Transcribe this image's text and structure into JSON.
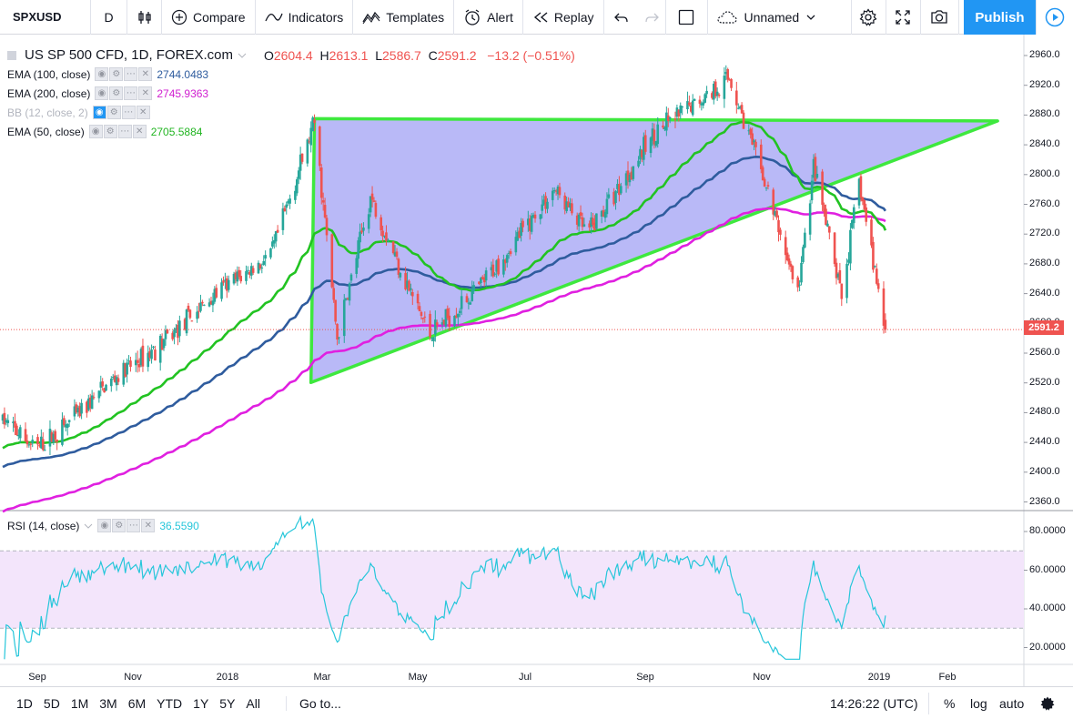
{
  "toolbar": {
    "symbol": "SPXUSD",
    "interval": "D",
    "compare": "Compare",
    "indicators": "Indicators",
    "templates": "Templates",
    "alert": "Alert",
    "replay": "Replay",
    "layout_name": "Unnamed",
    "publish": "Publish",
    "icons": [
      "bars-style-icon",
      "compare-plus-icon",
      "indicators-icon",
      "templates-icon",
      "alert-clock-icon",
      "replay-icon",
      "undo-icon",
      "redo-icon",
      "layout-square-icon",
      "cloud-icon",
      "chevron-down-icon",
      "gear-icon",
      "fullscreen-icon",
      "camera-icon",
      "play-icon"
    ]
  },
  "legend": {
    "title": "US SP 500 CFD, 1D, FOREX.com",
    "open_label": "O",
    "open": "2604.4",
    "high_label": "H",
    "high": "2613.1",
    "low_label": "L",
    "low": "2586.7",
    "close_label": "C",
    "close": "2591.2",
    "change": "−13.2 (−0.51%)",
    "indicators": [
      {
        "name": "EMA (100, close)",
        "value": "2744.0483",
        "color": "#2f5c9e"
      },
      {
        "name": "EMA (200, close)",
        "value": "2745.9363",
        "color": "#e020e0"
      },
      {
        "name": "BB (12, close, 2)",
        "value": "",
        "color": "#c0c3cb"
      },
      {
        "name": "EMA (50, close)",
        "value": "2705.5884",
        "color": "#22c322"
      }
    ]
  },
  "rsi": {
    "name": "RSI (14, close)",
    "value": "36.5590",
    "color": "#26c6da"
  },
  "price_scale": [
    "2960.0",
    "2920.0",
    "2880.0",
    "2840.0",
    "2800.0",
    "2760.0",
    "2720.0",
    "2680.0",
    "2640.0",
    "2600.0",
    "2560.0",
    "2520.0",
    "2480.0",
    "2440.0",
    "2400.0",
    "2360.0"
  ],
  "current_price": "2591.2",
  "rsi_scale": [
    "80.0000",
    "60.0000",
    "40.0000",
    "20.0000"
  ],
  "time_axis": [
    "Sep",
    "Nov",
    "2018",
    "Mar",
    "May",
    "Jul",
    "Sep",
    "Nov",
    "2019",
    "Feb"
  ],
  "bottom": {
    "ranges": [
      "1D",
      "5D",
      "1M",
      "3M",
      "6M",
      "YTD",
      "1Y",
      "5Y",
      "All"
    ],
    "goto": "Go to...",
    "clock": "14:26:22 (UTC)",
    "percent": "%",
    "log": "log",
    "auto": "auto"
  },
  "colors": {
    "up": "#26a69a",
    "down": "#ef5350",
    "triangle_fill": "#8080f0",
    "triangle_stroke": "#3ee83e",
    "ema50": "#22c322",
    "ema100": "#2f5c9e",
    "ema200": "#e020e0",
    "rsi_band": "#f3e5fb"
  },
  "chart_data": {
    "type": "candlestick",
    "symbol": "US SP 500 CFD",
    "timeframe": "1D",
    "ylim": [
      2350,
      2970
    ],
    "x_ticks": [
      "Sep",
      "Nov",
      "2018",
      "Mar",
      "May",
      "Jul",
      "Sep",
      "Nov",
      "2019",
      "Feb"
    ],
    "close_path": [
      {
        "x": "2017-08-01",
        "y": 2470
      },
      {
        "x": "2017-08-20",
        "y": 2430
      },
      {
        "x": "2017-09-10",
        "y": 2470
      },
      {
        "x": "2017-10-01",
        "y": 2520
      },
      {
        "x": "2017-11-01",
        "y": 2575
      },
      {
        "x": "2017-12-01",
        "y": 2640
      },
      {
        "x": "2018-01-01",
        "y": 2690
      },
      {
        "x": "2018-01-26",
        "y": 2870
      },
      {
        "x": "2018-02-08",
        "y": 2580
      },
      {
        "x": "2018-02-27",
        "y": 2770
      },
      {
        "x": "2018-03-22",
        "y": 2640
      },
      {
        "x": "2018-04-02",
        "y": 2585
      },
      {
        "x": "2018-05-01",
        "y": 2650
      },
      {
        "x": "2018-06-12",
        "y": 2780
      },
      {
        "x": "2018-07-01",
        "y": 2720
      },
      {
        "x": "2018-08-08",
        "y": 2855
      },
      {
        "x": "2018-09-20",
        "y": 2930
      },
      {
        "x": "2018-10-10",
        "y": 2790
      },
      {
        "x": "2018-10-29",
        "y": 2640
      },
      {
        "x": "2018-11-07",
        "y": 2810
      },
      {
        "x": "2018-11-23",
        "y": 2635
      },
      {
        "x": "2018-12-03",
        "y": 2790
      },
      {
        "x": "2018-12-18",
        "y": 2591.2
      }
    ],
    "ema50_end": 2705.5884,
    "ema100_end": 2744.0483,
    "ema200_end": 2745.9363,
    "triangle": [
      {
        "x": "2018-01-26",
        "y": 2875
      },
      {
        "x": "2018-01-24",
        "y": 2520
      },
      {
        "x": "2019-02-20",
        "y": 2872
      }
    ],
    "rsi_ylim": [
      10,
      90
    ],
    "rsi_bands": [
      70,
      30
    ],
    "rsi_last": 36.559
  }
}
